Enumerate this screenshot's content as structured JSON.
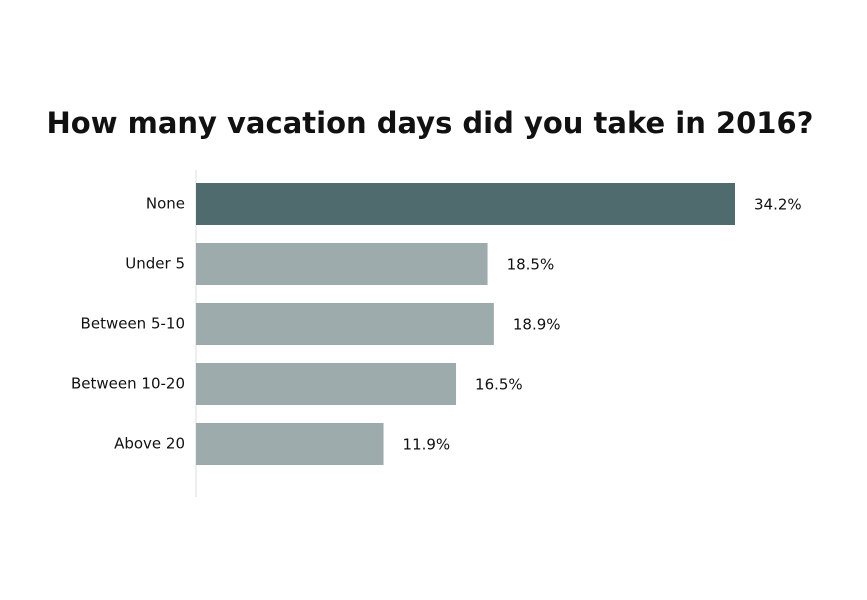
{
  "chart_data": {
    "type": "hbar",
    "title": "How many vacation days did you take in 2016?",
    "categories": [
      "None",
      "Under 5",
      "Between 5-10",
      "Between 10-20",
      "Above 20"
    ],
    "values": [
      34.2,
      18.5,
      18.9,
      16.5,
      11.9
    ],
    "value_labels": [
      "34.2%",
      "18.5%",
      "18.9%",
      "16.5%",
      "11.9%"
    ],
    "colors": [
      "#4f6b6e",
      "#9eabac",
      "#9eabac",
      "#9eabac",
      "#9eabac"
    ]
  }
}
